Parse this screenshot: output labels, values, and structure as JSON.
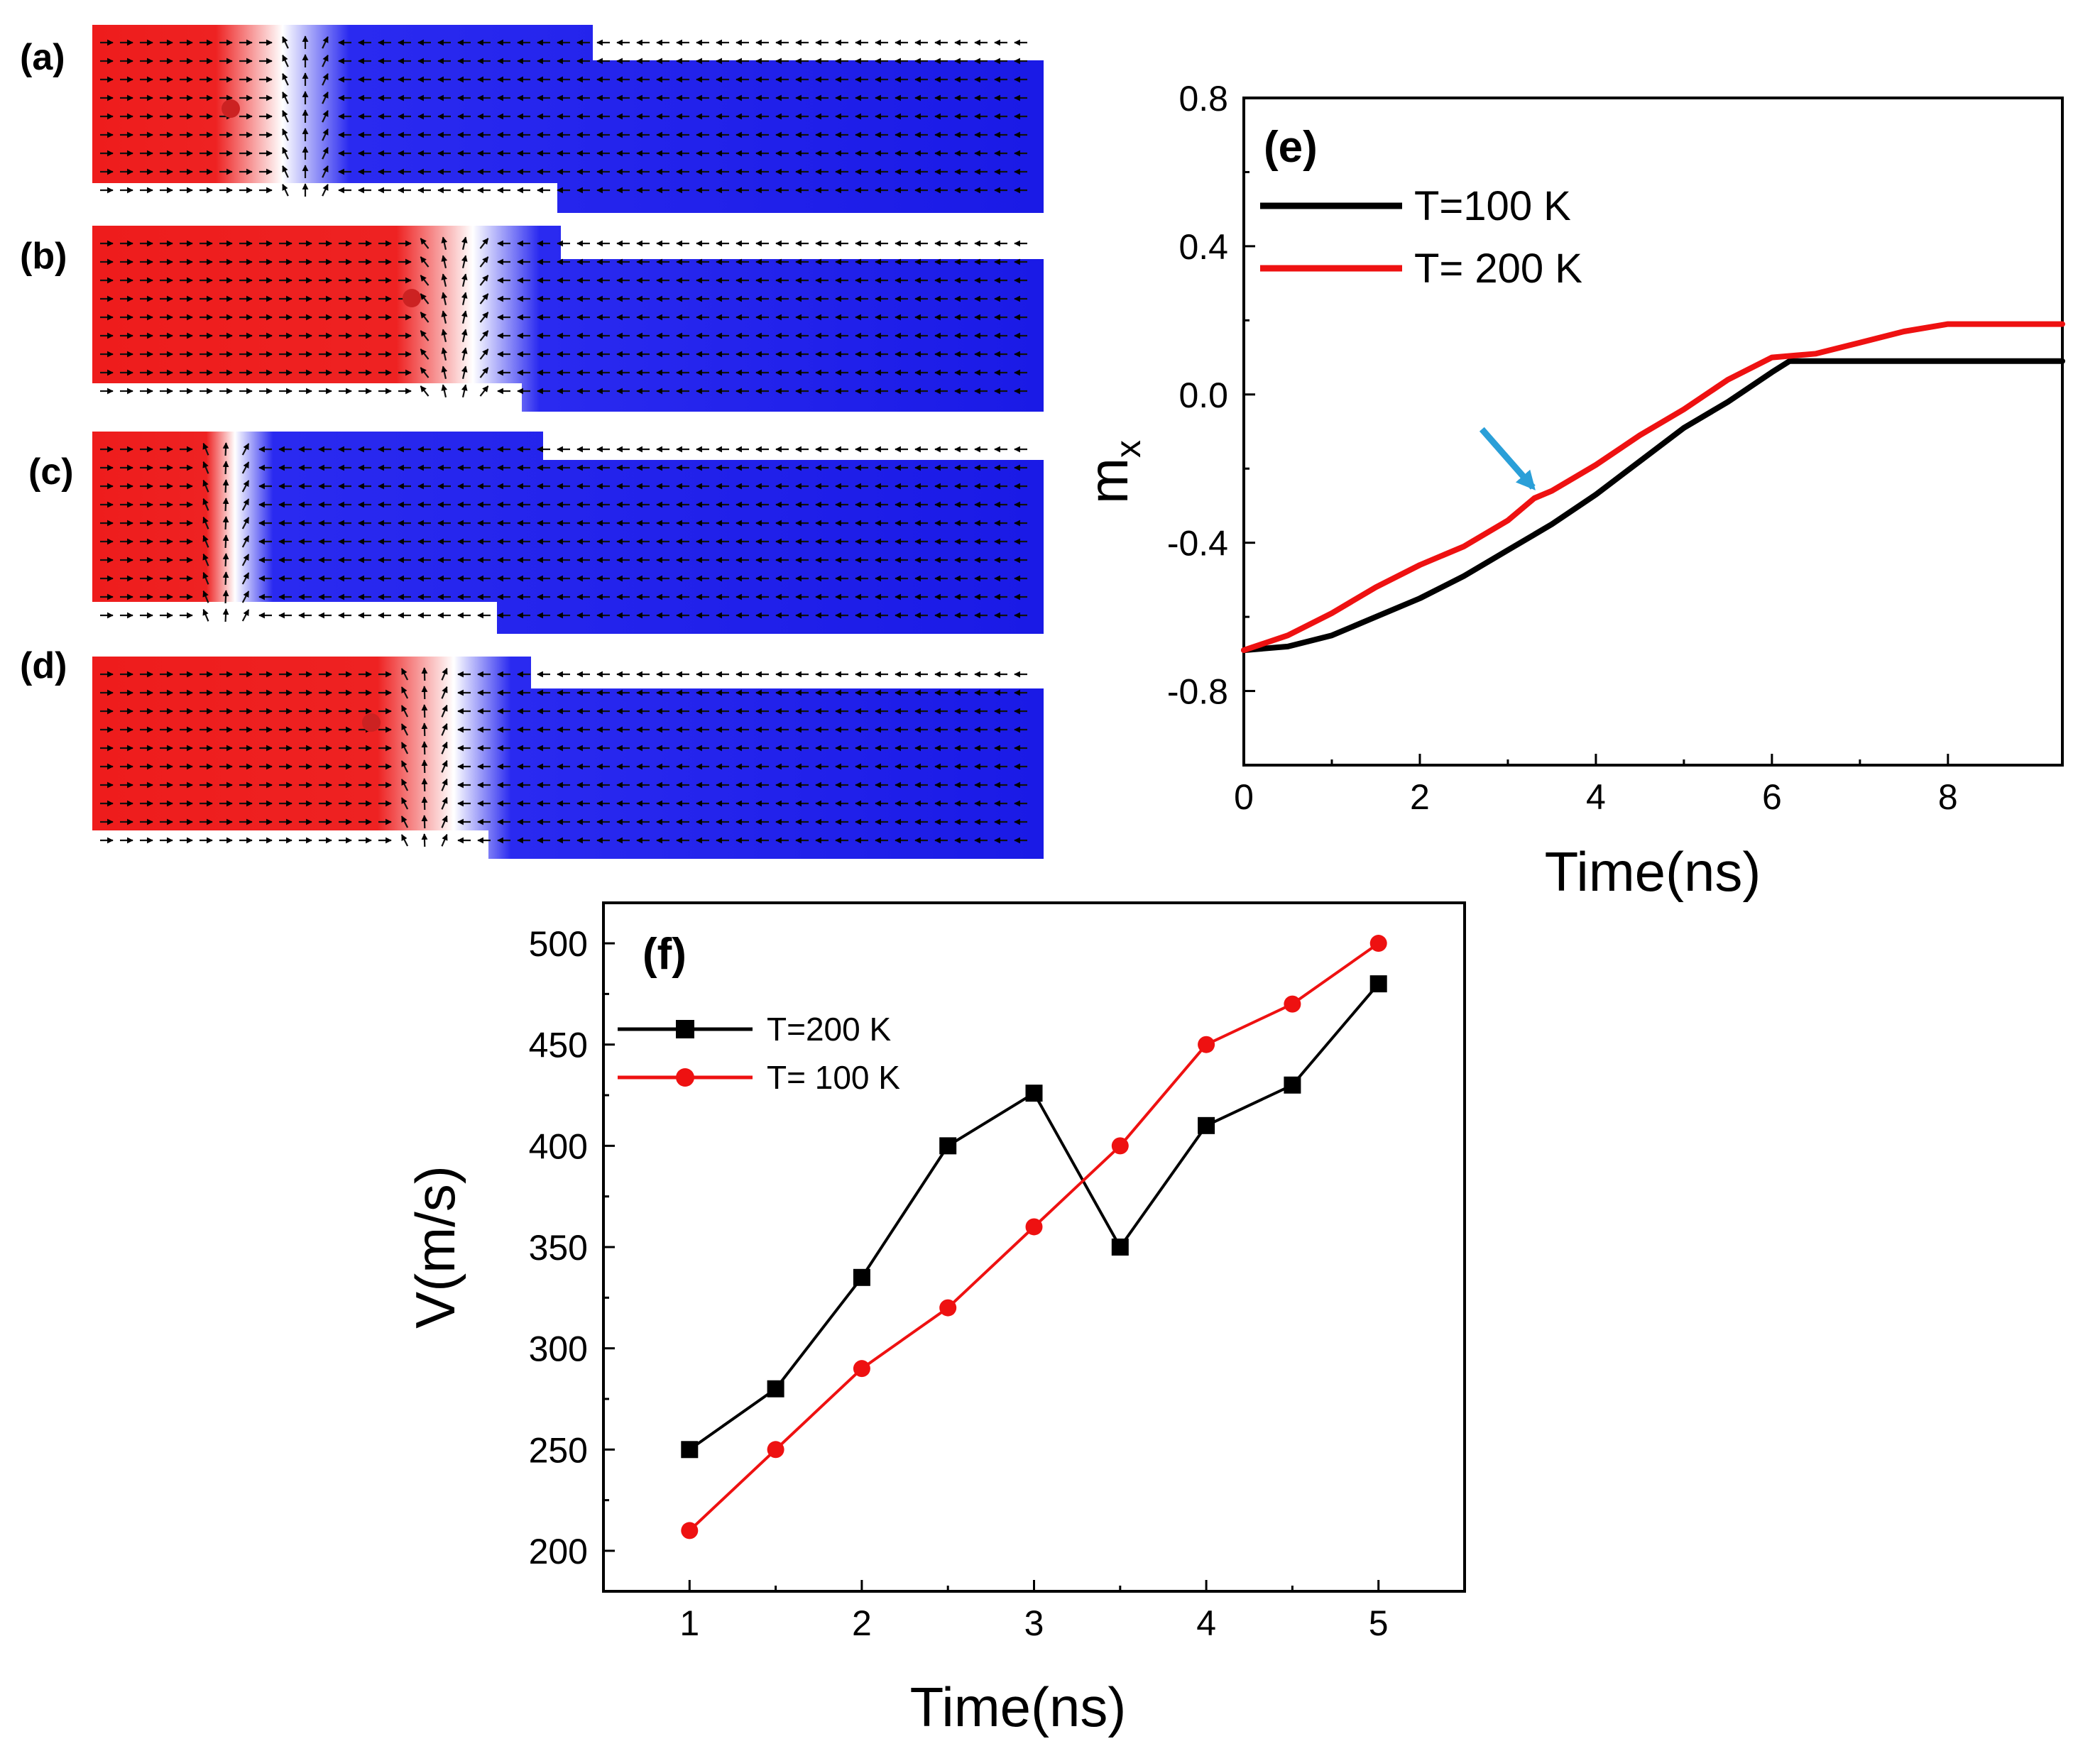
{
  "colors": {
    "red_domain": "#ee1c1c",
    "blue_domain": "#1a1ae6",
    "black": "#000000",
    "red": "#ee1111",
    "arrow_blue": "#2a9fd8",
    "dot": "#cc2222"
  },
  "panels": {
    "a": {
      "label": "(a)"
    },
    "b": {
      "label": "(b)"
    },
    "c": {
      "label": "(c)"
    },
    "d": {
      "label": "(d)"
    }
  },
  "chart_data": [
    {
      "id": "e",
      "type": "line",
      "panel_label": "(e)",
      "xlabel": "Time(ns)",
      "ylabel": "m",
      "ylabel_subscript": "x",
      "xlim": [
        0,
        9.3
      ],
      "ylim": [
        -1.0,
        0.8
      ],
      "xticks": [
        0,
        2,
        4,
        6,
        8
      ],
      "yticks": [
        -0.8,
        -0.4,
        0.0,
        0.4,
        0.8
      ],
      "ytick_labels": [
        "-0.8",
        "-0.4",
        "0.0",
        "0.4",
        "0.8"
      ],
      "legend": "top-left",
      "series": [
        {
          "name": "T=100 K",
          "color": "#000000",
          "x": [
            0,
            0.5,
            1,
            1.5,
            2,
            2.5,
            3,
            3.5,
            4,
            4.5,
            5,
            5.5,
            6,
            6.2,
            7,
            8,
            9.3
          ],
          "y": [
            -0.69,
            -0.68,
            -0.65,
            -0.6,
            -0.55,
            -0.49,
            -0.42,
            -0.35,
            -0.27,
            -0.18,
            -0.09,
            -0.02,
            0.06,
            0.09,
            0.09,
            0.09,
            0.09
          ]
        },
        {
          "name": "T= 200 K",
          "color": "#ee1111",
          "x": [
            0,
            0.5,
            1,
            1.5,
            2,
            2.5,
            3,
            3.3,
            3.5,
            4,
            4.5,
            5,
            5.5,
            6,
            6.5,
            7,
            7.5,
            8,
            9.3
          ],
          "y": [
            -0.69,
            -0.65,
            -0.59,
            -0.52,
            -0.46,
            -0.41,
            -0.34,
            -0.28,
            -0.26,
            -0.19,
            -0.11,
            -0.04,
            0.04,
            0.1,
            0.11,
            0.14,
            0.17,
            0.19,
            0.19
          ]
        }
      ],
      "annotation": {
        "type": "arrow",
        "color": "#2a9fd8",
        "points_to": {
          "x": 3.35,
          "y": -0.27
        }
      }
    },
    {
      "id": "f",
      "type": "line",
      "panel_label": "(f)",
      "xlabel": "Time(ns)",
      "ylabel": "V(m/s)",
      "xlim": [
        0.5,
        5.5
      ],
      "ylim": [
        180,
        520
      ],
      "xticks": [
        1,
        2,
        3,
        4,
        5
      ],
      "yticks": [
        200,
        250,
        300,
        350,
        400,
        450,
        500
      ],
      "legend": "top-left",
      "series": [
        {
          "name": "T=200 K",
          "color": "#000000",
          "marker": "square",
          "x": [
            1,
            1.5,
            2,
            2.5,
            3,
            3.5,
            4,
            4.5,
            5
          ],
          "y": [
            250,
            280,
            335,
            400,
            426,
            350,
            410,
            430,
            480
          ]
        },
        {
          "name": "T= 100 K",
          "color": "#ee1111",
          "marker": "circle",
          "x": [
            1,
            1.5,
            2,
            2.5,
            3,
            3.5,
            4,
            4.5,
            5
          ],
          "y": [
            210,
            250,
            290,
            320,
            360,
            400,
            450,
            470,
            500
          ]
        }
      ]
    }
  ]
}
